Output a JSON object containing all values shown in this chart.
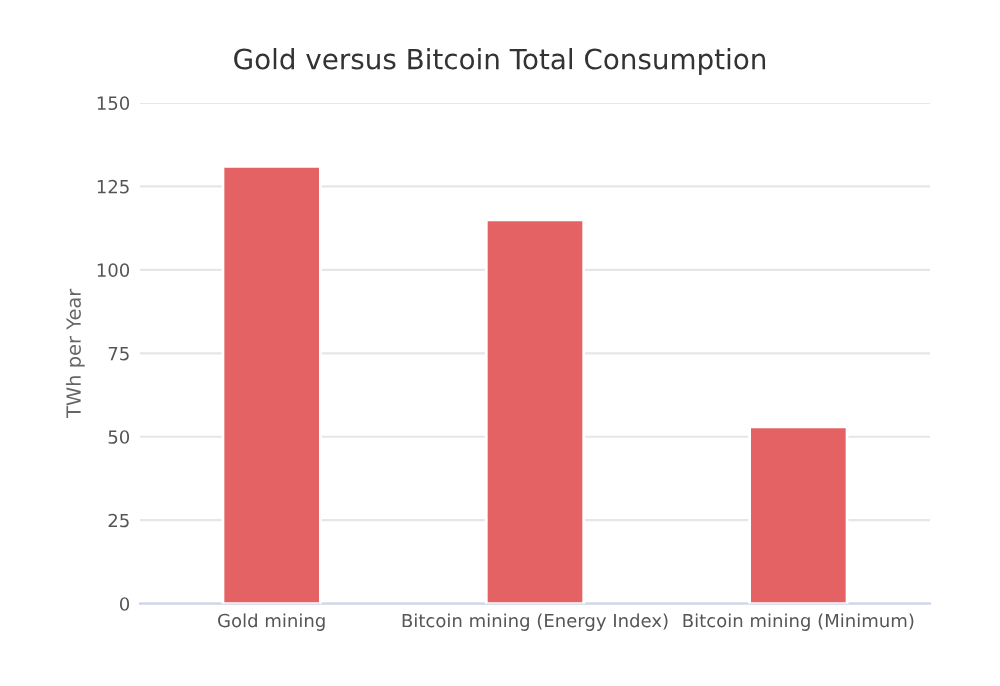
{
  "chart_data": {
    "type": "bar",
    "title": "Gold versus Bitcoin Total Consumption",
    "ylabel": "TWh per Year",
    "categories": [
      "Gold mining",
      "Bitcoin mining (Energy Index)",
      "Bitcoin mining (Minimum)"
    ],
    "values": [
      131,
      115,
      53
    ],
    "color": "#e46264",
    "ylim": [
      0,
      150
    ],
    "yticks": [
      0,
      25,
      50,
      75,
      100,
      125,
      150
    ],
    "grid": "y",
    "legend": false
  }
}
